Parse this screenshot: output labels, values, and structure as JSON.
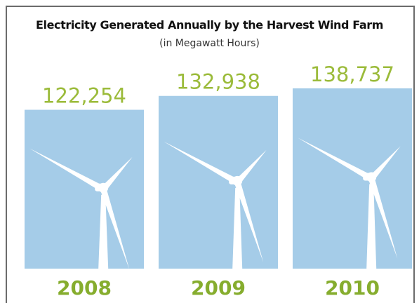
{
  "chart_data": {
    "type": "bar",
    "title": "Electricity Generated Annually by the Harvest Wind Farm",
    "subtitle": "(in Megawatt Hours)",
    "categories": [
      "2008",
      "2009",
      "2010"
    ],
    "values": [
      122254,
      132938,
      138737
    ],
    "value_labels": [
      "122,254",
      "132,938",
      "138,737"
    ],
    "ylim": [
      0,
      140000
    ],
    "grid": false,
    "bar_color": "#a5cce8",
    "value_color": "#9bbb3a",
    "category_color": "#86ad2e"
  }
}
